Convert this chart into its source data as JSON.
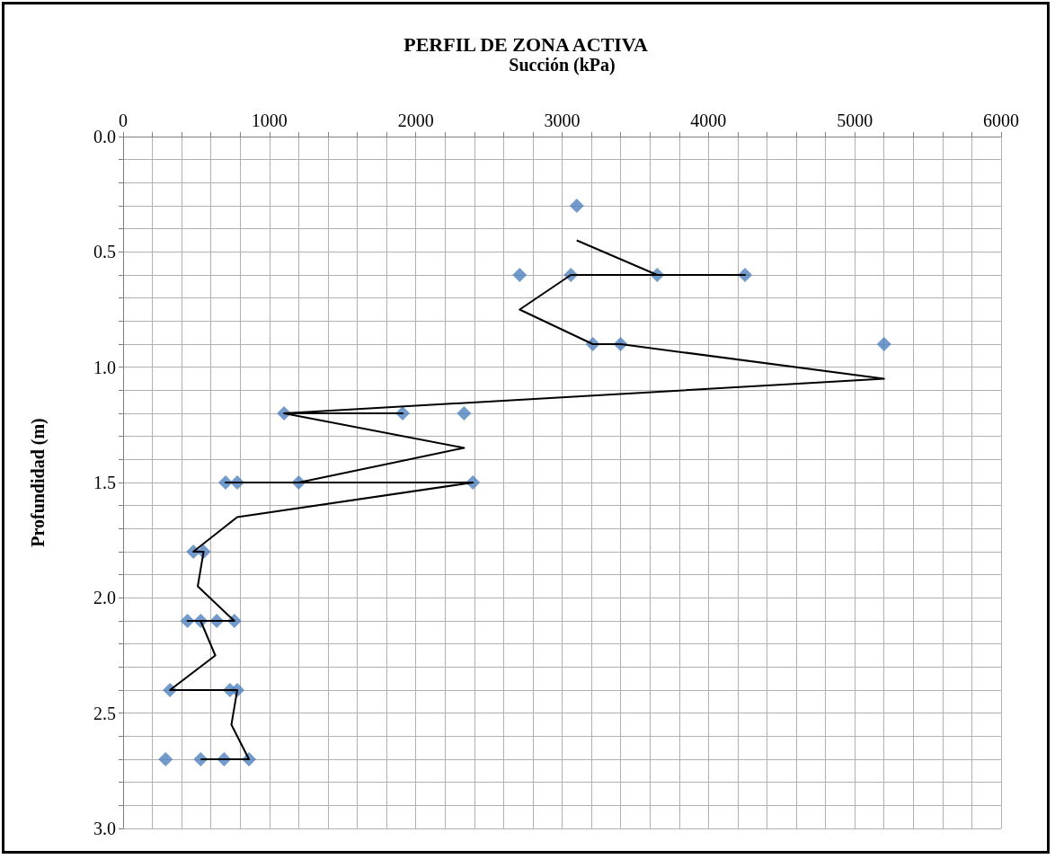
{
  "chart_data": {
    "type": "scatter",
    "title": "PERFIL DE ZONA ACTIVA",
    "xlabel": "Succión (kPa)",
    "ylabel": "Profundidad (m)",
    "xlim": [
      0,
      6000
    ],
    "xticks": [
      0,
      {
        "value": 200,
        "label": null
      },
      {
        "value": 400,
        "label": null
      },
      {
        "value": 600,
        "label": null
      },
      {
        "value": 800,
        "label": null
      },
      1000,
      {
        "value": 1200,
        "label": null
      },
      {
        "value": 1400,
        "label": null
      },
      {
        "value": 1600,
        "label": null
      },
      {
        "value": 1800,
        "label": null
      },
      2000,
      {
        "value": 2200,
        "label": null
      },
      {
        "value": 2400,
        "label": null
      },
      {
        "value": 2600,
        "label": null
      },
      {
        "value": 2800,
        "label": null
      },
      3000,
      {
        "value": 3200,
        "label": null
      },
      {
        "value": 3400,
        "label": null
      },
      {
        "value": 3600,
        "label": null
      },
      {
        "value": 3800,
        "label": null
      },
      4000,
      {
        "value": 4200,
        "label": null
      },
      {
        "value": 4400,
        "label": null
      },
      {
        "value": 4600,
        "label": null
      },
      {
        "value": 4800,
        "label": null
      },
      5000,
      {
        "value": 5200,
        "label": null
      },
      {
        "value": 5400,
        "label": null
      },
      {
        "value": 5600,
        "label": null
      },
      {
        "value": 5800,
        "label": null
      },
      6000
    ],
    "ylim": [
      3,
      0
    ],
    "yticks": [
      {
        "value": 0,
        "label": "0.0"
      },
      {
        "value": 0.1,
        "label": null
      },
      {
        "value": 0.2,
        "label": null
      },
      {
        "value": 0.3,
        "label": null
      },
      {
        "value": 0.4,
        "label": null
      },
      0.5,
      {
        "value": 0.6,
        "label": null
      },
      {
        "value": 0.7,
        "label": null
      },
      {
        "value": 0.8,
        "label": null
      },
      {
        "value": 0.9,
        "label": null
      },
      {
        "value": 1,
        "label": "1.0"
      },
      {
        "value": 1.1,
        "label": null
      },
      {
        "value": 1.2,
        "label": null
      },
      {
        "value": 1.3,
        "label": null
      },
      {
        "value": 1.4,
        "label": null
      },
      1.5,
      {
        "value": 1.6,
        "label": null
      },
      {
        "value": 1.7,
        "label": null
      },
      {
        "value": 1.8,
        "label": null
      },
      {
        "value": 1.9,
        "label": null
      },
      {
        "value": 2,
        "label": "2.0"
      },
      {
        "value": 2.1,
        "label": null
      },
      {
        "value": 2.2,
        "label": null
      },
      {
        "value": 2.3,
        "label": null
      },
      {
        "value": 2.4,
        "label": null
      },
      2.5,
      {
        "value": 2.6,
        "label": null
      },
      {
        "value": 2.7,
        "label": null
      },
      {
        "value": 2.8,
        "label": null
      },
      {
        "value": 2.9,
        "label": null
      },
      {
        "value": 3,
        "label": "3.0"
      }
    ],
    "grid": true,
    "series": [
      {
        "color": "#4f81bd",
        "marker": "diamond",
        "x": [
          3100,
          2710,
          3060,
          3650,
          4250,
          3210,
          3400,
          5200,
          1100,
          1910,
          2330,
          700,
          780,
          1200,
          2390,
          480,
          550,
          440,
          530,
          640,
          760,
          320,
          730,
          780,
          290,
          530,
          690,
          860
        ],
        "values": [
          0.3,
          0.6,
          0.6,
          0.6,
          0.6,
          0.9,
          0.9,
          0.9,
          1.2,
          1.2,
          1.2,
          1.5,
          1.5,
          1.5,
          1.5,
          1.8,
          1.8,
          2.1,
          2.1,
          2.1,
          2.1,
          2.4,
          2.4,
          2.4,
          2.7,
          2.7,
          2.7,
          2.7
        ]
      },
      {
        "type": "line",
        "color": "#000000",
        "marker": "none",
        "line_style": "solid",
        "x": [
          3100,
          3650,
          4250,
          3060,
          2710,
          3210,
          3400,
          5200,
          1100,
          1910,
          1100,
          2330,
          1200,
          700,
          2390,
          780,
          480,
          550,
          510,
          760,
          440,
          530,
          630,
          320,
          780,
          740,
          860,
          530
        ],
        "values": [
          0.45,
          0.6,
          0.6,
          0.6,
          0.75,
          0.9,
          0.9,
          1.05,
          1.2,
          1.2,
          1.2,
          1.35,
          1.5,
          1.5,
          1.5,
          1.65,
          1.8,
          1.8,
          1.95,
          2.1,
          2.1,
          2.1,
          2.25,
          2.4,
          2.4,
          2.55,
          2.7,
          2.7
        ]
      }
    ]
  }
}
